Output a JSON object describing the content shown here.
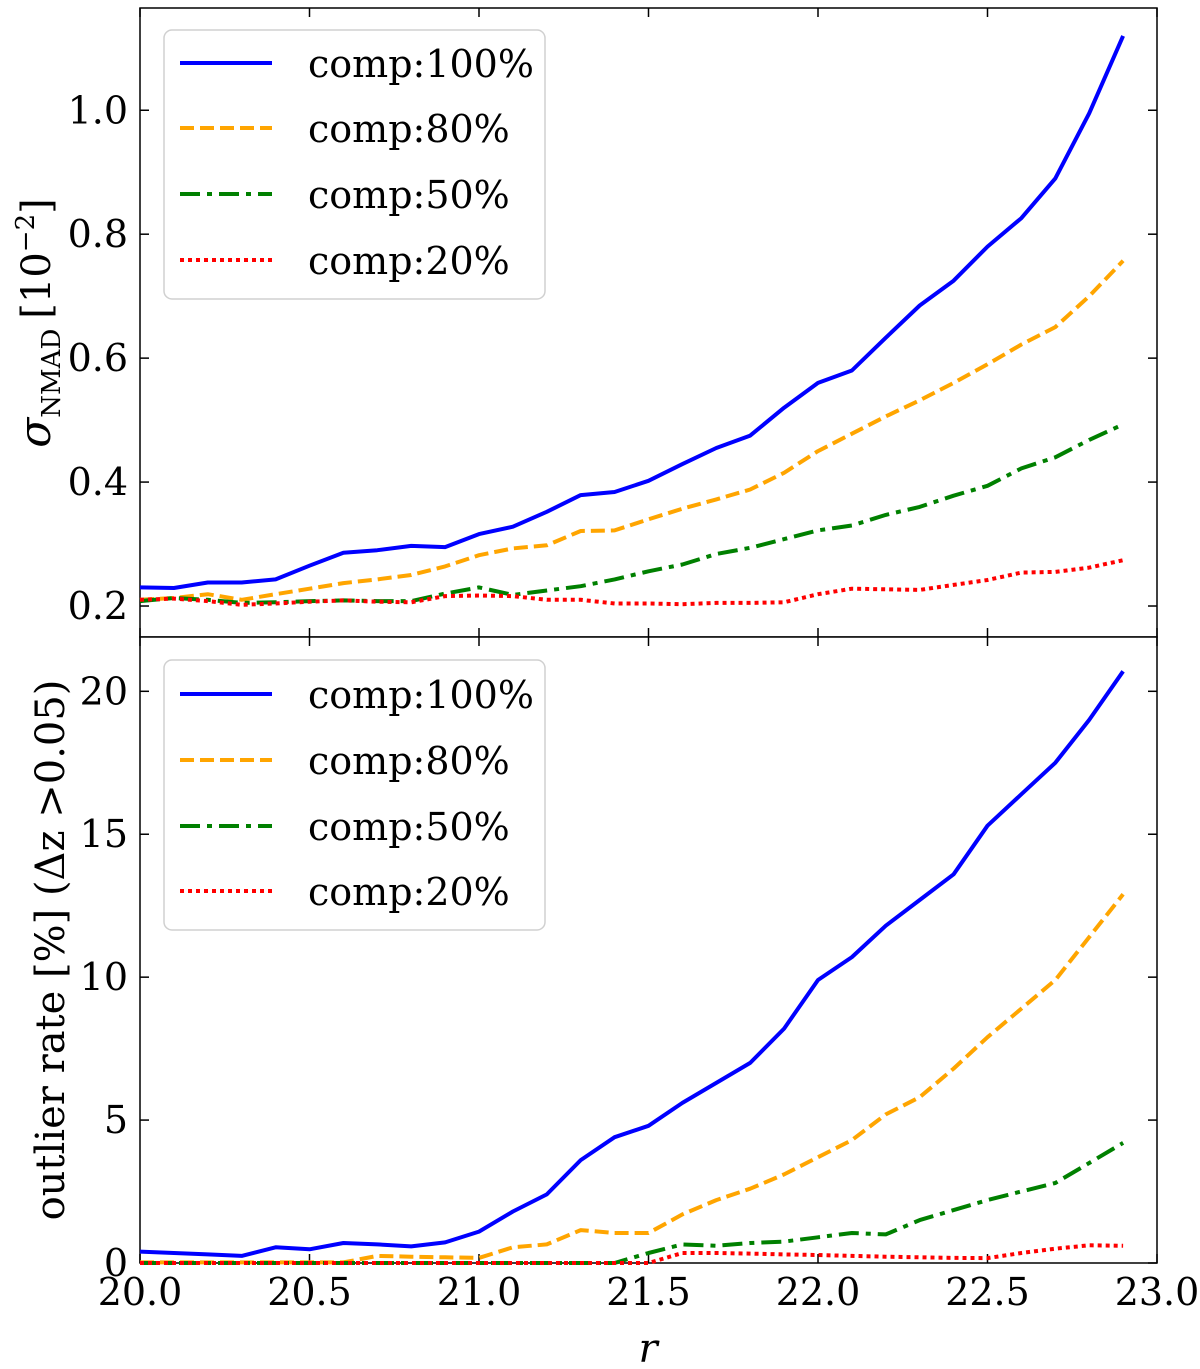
{
  "chart_data": [
    {
      "type": "line",
      "id": "top",
      "title": "",
      "xlabel": "",
      "ylabel_main": "σ",
      "ylabel_sub": "NMAD",
      "ylabel_bracket": "[10",
      "ylabel_exp": "−2",
      "ylabel_close": "]",
      "xlim": [
        20.0,
        23.0
      ],
      "ylim": [
        0.15,
        1.165
      ],
      "yticks": [
        0.2,
        0.4,
        0.6,
        0.8,
        1.0
      ],
      "ytick_labels": [
        "0.2",
        "0.4",
        "0.6",
        "0.8",
        "1.0"
      ],
      "xticks": [
        20.0,
        20.5,
        21.0,
        21.5,
        22.0,
        22.5,
        23.0
      ],
      "legend_position": "top-left",
      "x": [
        20.0,
        20.1,
        20.2,
        20.3,
        20.4,
        20.5,
        20.6,
        20.7,
        20.8,
        20.9,
        21.0,
        21.1,
        21.2,
        21.3,
        21.4,
        21.5,
        21.6,
        21.7,
        21.8,
        21.9,
        22.0,
        22.1,
        22.2,
        22.3,
        22.4,
        22.5,
        22.6,
        22.7,
        22.8,
        22.9
      ],
      "series": [
        {
          "name": "comp:100%",
          "color": "#0000ff",
          "style": "solid",
          "values": [
            0.23,
            0.229,
            0.238,
            0.238,
            0.243,
            0.265,
            0.286,
            0.29,
            0.297,
            0.295,
            0.316,
            0.328,
            0.352,
            0.379,
            0.384,
            0.402,
            0.429,
            0.455,
            0.475,
            0.52,
            0.56,
            0.58,
            0.633,
            0.685,
            0.725,
            0.78,
            0.826,
            0.89,
            0.995,
            1.12
          ]
        },
        {
          "name": "comp:80%",
          "color": "#ffa500",
          "style": "dashed",
          "values": [
            0.21,
            0.213,
            0.219,
            0.21,
            0.219,
            0.228,
            0.237,
            0.243,
            0.25,
            0.264,
            0.282,
            0.293,
            0.298,
            0.321,
            0.322,
            0.34,
            0.357,
            0.372,
            0.388,
            0.415,
            0.45,
            0.478,
            0.506,
            0.532,
            0.56,
            0.59,
            0.622,
            0.65,
            0.7,
            0.757
          ]
        },
        {
          "name": "comp:50%",
          "color": "#008000",
          "style": "dashdot",
          "values": [
            0.208,
            0.213,
            0.21,
            0.205,
            0.206,
            0.208,
            0.209,
            0.208,
            0.208,
            0.22,
            0.23,
            0.218,
            0.225,
            0.232,
            0.243,
            0.256,
            0.267,
            0.284,
            0.294,
            0.308,
            0.322,
            0.33,
            0.347,
            0.36,
            0.378,
            0.394,
            0.422,
            0.44,
            0.468,
            0.493
          ]
        },
        {
          "name": "comp:20%",
          "color": "#ff0000",
          "style": "dotted",
          "values": [
            0.21,
            0.212,
            0.208,
            0.202,
            0.204,
            0.207,
            0.209,
            0.207,
            0.206,
            0.216,
            0.217,
            0.216,
            0.21,
            0.21,
            0.204,
            0.204,
            0.203,
            0.205,
            0.205,
            0.206,
            0.219,
            0.228,
            0.227,
            0.226,
            0.234,
            0.242,
            0.254,
            0.255,
            0.262,
            0.274
          ]
        }
      ]
    },
    {
      "type": "line",
      "id": "bottom",
      "title": "",
      "xlabel": "r",
      "ylabel": "outlier rate [%] (Δz >0.05)",
      "xlim": [
        20.0,
        23.0
      ],
      "ylim": [
        0.0,
        21.9
      ],
      "yticks": [
        0,
        5,
        10,
        15,
        20
      ],
      "ytick_labels": [
        "0",
        "5",
        "10",
        "15",
        "20"
      ],
      "xticks": [
        20.0,
        20.5,
        21.0,
        21.5,
        22.0,
        22.5,
        23.0
      ],
      "xtick_labels": [
        "20.0",
        "20.5",
        "21.0",
        "21.5",
        "22.0",
        "22.5",
        "23.0"
      ],
      "legend_position": "top-left",
      "x": [
        20.0,
        20.1,
        20.2,
        20.3,
        20.4,
        20.5,
        20.6,
        20.7,
        20.8,
        20.9,
        21.0,
        21.1,
        21.2,
        21.3,
        21.4,
        21.5,
        21.6,
        21.7,
        21.8,
        21.9,
        22.0,
        22.1,
        22.2,
        22.3,
        22.4,
        22.5,
        22.6,
        22.7,
        22.8,
        22.9
      ],
      "series": [
        {
          "name": "comp:100%",
          "color": "#0000ff",
          "style": "solid",
          "values": [
            0.4,
            0.35,
            0.3,
            0.25,
            0.55,
            0.48,
            0.7,
            0.65,
            0.58,
            0.72,
            1.1,
            1.8,
            2.4,
            3.6,
            4.4,
            4.8,
            5.6,
            6.3,
            7.0,
            8.2,
            9.9,
            10.7,
            11.8,
            12.7,
            13.6,
            15.3,
            16.4,
            17.5,
            19.0,
            20.7
          ]
        },
        {
          "name": "comp:80%",
          "color": "#ffa500",
          "style": "dashed",
          "values": [
            0.02,
            0.02,
            0.02,
            0.02,
            0.02,
            0.02,
            0.02,
            0.25,
            0.22,
            0.2,
            0.18,
            0.55,
            0.65,
            1.15,
            1.05,
            1.05,
            1.7,
            2.2,
            2.6,
            3.1,
            3.7,
            4.3,
            5.2,
            5.8,
            6.8,
            7.9,
            8.9,
            9.9,
            11.4,
            12.9
          ]
        },
        {
          "name": "comp:50%",
          "color": "#008000",
          "style": "dashdot",
          "values": [
            0.0,
            0.0,
            0.0,
            0.0,
            0.0,
            0.0,
            0.0,
            0.0,
            0.0,
            0.0,
            0.0,
            0.0,
            0.0,
            0.0,
            0.0,
            0.35,
            0.65,
            0.6,
            0.7,
            0.75,
            0.9,
            1.05,
            1.0,
            1.5,
            1.85,
            2.2,
            2.5,
            2.8,
            3.5,
            4.2
          ]
        },
        {
          "name": "comp:20%",
          "color": "#ff0000",
          "style": "dotted",
          "values": [
            0.0,
            0.0,
            0.0,
            0.0,
            0.0,
            0.0,
            0.0,
            0.0,
            0.0,
            0.0,
            0.0,
            0.0,
            0.0,
            0.0,
            0.0,
            0.0,
            0.35,
            0.35,
            0.33,
            0.3,
            0.28,
            0.25,
            0.22,
            0.2,
            0.18,
            0.17,
            0.35,
            0.5,
            0.62,
            0.6
          ]
        }
      ]
    }
  ]
}
